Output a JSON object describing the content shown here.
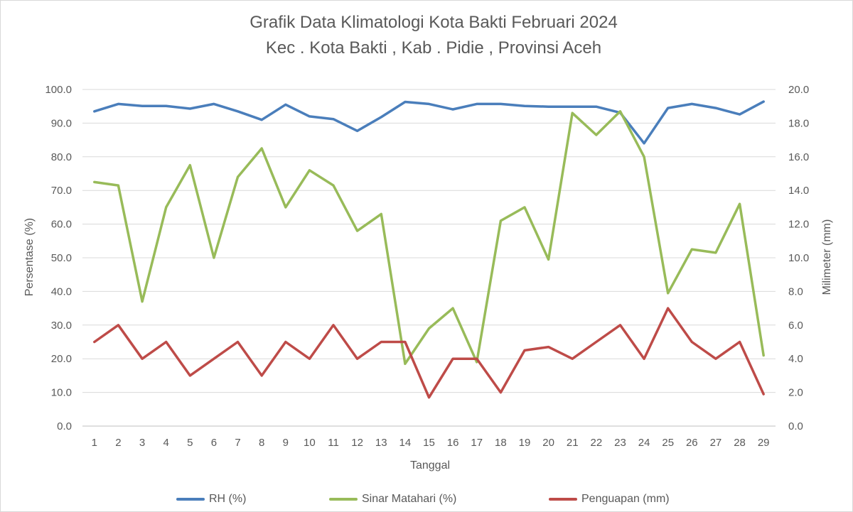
{
  "chart_data": {
    "type": "line",
    "title": "Grafik Data Klimatologi Kota Bakti Februari 2024",
    "subtitle": "Kec . Kota Bakti , Kab . Pidie , Provinsi  Aceh",
    "xlabel": "Tanggal",
    "ylabel_left": "Persentase (%)",
    "ylabel_right": "Milimeter (mm)",
    "ylim_left": [
      0,
      100
    ],
    "ylim_right": [
      0,
      20
    ],
    "yticks_left": [
      "0.0",
      "10.0",
      "20.0",
      "30.0",
      "40.0",
      "50.0",
      "60.0",
      "70.0",
      "80.0",
      "90.0",
      "100.0"
    ],
    "yticks_right": [
      "0.0",
      "2.0",
      "4.0",
      "6.0",
      "8.0",
      "10.0",
      "12.0",
      "14.0",
      "16.0",
      "18.0",
      "20.0"
    ],
    "grid": true,
    "legend_position": "bottom",
    "x": [
      "1",
      "2",
      "3",
      "4",
      "5",
      "6",
      "7",
      "8",
      "9",
      "10",
      "11",
      "12",
      "13",
      "14",
      "15",
      "16",
      "17",
      "18",
      "19",
      "20",
      "21",
      "22",
      "23",
      "24",
      "25",
      "26",
      "27",
      "28",
      "29"
    ],
    "series": [
      {
        "name": "RH (%)",
        "axis": "left",
        "color": "#4a7ebb",
        "values": [
          93.5,
          95.7,
          95.1,
          95.1,
          94.3,
          95.7,
          93.5,
          91.0,
          95.5,
          92.0,
          91.2,
          87.7,
          91.8,
          96.3,
          95.7,
          94.1,
          95.7,
          95.7,
          95.1,
          94.9,
          94.9,
          94.9,
          93.1,
          84.0,
          94.5,
          95.7,
          94.5,
          92.6,
          96.4
        ]
      },
      {
        "name": "Sinar Matahari (%)",
        "axis": "left",
        "color": "#98bb59",
        "values": [
          72.5,
          71.5,
          37.0,
          65.0,
          77.5,
          50.0,
          74.0,
          82.5,
          65.0,
          76.0,
          71.5,
          58.0,
          63.0,
          18.5,
          29.0,
          35.0,
          19.0,
          61.0,
          65.0,
          49.5,
          93.0,
          86.5,
          93.5,
          80.0,
          39.5,
          52.5,
          51.5,
          66.0,
          21.0
        ]
      },
      {
        "name": "Penguapan (mm)",
        "axis": "right",
        "color": "#be4b48",
        "values": [
          5.0,
          6.0,
          4.0,
          5.0,
          3.0,
          4.0,
          5.0,
          3.0,
          5.0,
          4.0,
          6.0,
          4.0,
          5.0,
          5.0,
          1.7,
          4.0,
          4.0,
          2.0,
          4.5,
          4.7,
          4.0,
          5.0,
          6.0,
          4.0,
          7.0,
          5.0,
          4.0,
          5.0,
          1.9
        ]
      }
    ]
  }
}
